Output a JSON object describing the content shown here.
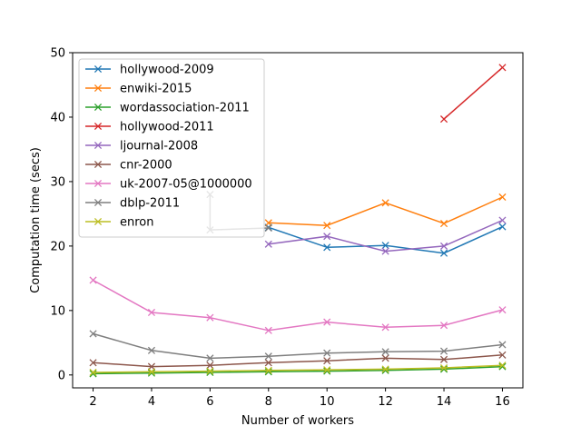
{
  "chart_data": {
    "type": "line",
    "title": "",
    "xlabel": "Number of workers",
    "ylabel": "Computation time (secs)",
    "xlim": [
      1.3,
      16.7
    ],
    "ylim": [
      -2,
      50
    ],
    "xticks": [
      2,
      4,
      6,
      8,
      10,
      12,
      14,
      16
    ],
    "yticks": [
      0,
      10,
      20,
      30,
      40,
      50
    ],
    "grid": false,
    "legend_position": "top-left",
    "marker": "x",
    "series": [
      {
        "name": "hollywood-2009",
        "color": "#1f77b4",
        "x": [
          8,
          10,
          12,
          14,
          16
        ],
        "y": [
          22.9,
          19.8,
          20.1,
          18.9,
          23.0
        ]
      },
      {
        "name": "enwiki-2015",
        "color": "#ff7f0e",
        "x": [
          8,
          10,
          12,
          14,
          16
        ],
        "y": [
          23.6,
          23.2,
          26.7,
          23.5,
          27.6
        ]
      },
      {
        "name": "wordassociation-2011",
        "color": "#2ca02c",
        "x": [
          2,
          4,
          6,
          8,
          10,
          12,
          14,
          16
        ],
        "y": [
          0.2,
          0.3,
          0.4,
          0.5,
          0.6,
          0.7,
          0.9,
          1.3
        ]
      },
      {
        "name": "hollywood-2011",
        "color": "#d62728",
        "x": [
          14,
          16
        ],
        "y": [
          39.7,
          47.7
        ]
      },
      {
        "name": "ljournal-2008",
        "color": "#9467bd",
        "x": [
          8,
          10,
          12,
          14,
          16
        ],
        "y": [
          20.3,
          21.5,
          19.2,
          20.0,
          24.0
        ]
      },
      {
        "name": "cnr-2000",
        "color": "#8c564b",
        "x": [
          2,
          4,
          6,
          8,
          10,
          12,
          14,
          16
        ],
        "y": [
          1.9,
          1.3,
          1.5,
          1.9,
          2.2,
          2.6,
          2.4,
          3.1
        ]
      },
      {
        "name": "uk-2007-05@1000000",
        "color": "#e377c2",
        "x": [
          2,
          4,
          6,
          8,
          10,
          12,
          14,
          16
        ],
        "y": [
          14.7,
          9.7,
          8.9,
          6.9,
          8.2,
          7.4,
          7.7,
          10.1
        ]
      },
      {
        "name": "dblp-2011",
        "color": "#7f7f7f",
        "x": [
          2,
          4,
          6,
          8,
          10,
          12,
          14,
          16
        ],
        "y": [
          6.4,
          3.8,
          2.6,
          2.9,
          3.4,
          3.6,
          3.7,
          4.7
        ],
        "extra_points": [
          {
            "x": 6,
            "y": 28.0
          },
          {
            "x": 6,
            "y": 22.5
          },
          {
            "x": 8,
            "y": 22.8
          }
        ]
      },
      {
        "name": "enron",
        "color": "#bcbd22",
        "x": [
          2,
          4,
          6,
          8,
          10,
          12,
          14,
          16
        ],
        "y": [
          0.4,
          0.5,
          0.6,
          0.7,
          0.8,
          0.9,
          1.1,
          1.5
        ]
      }
    ]
  }
}
